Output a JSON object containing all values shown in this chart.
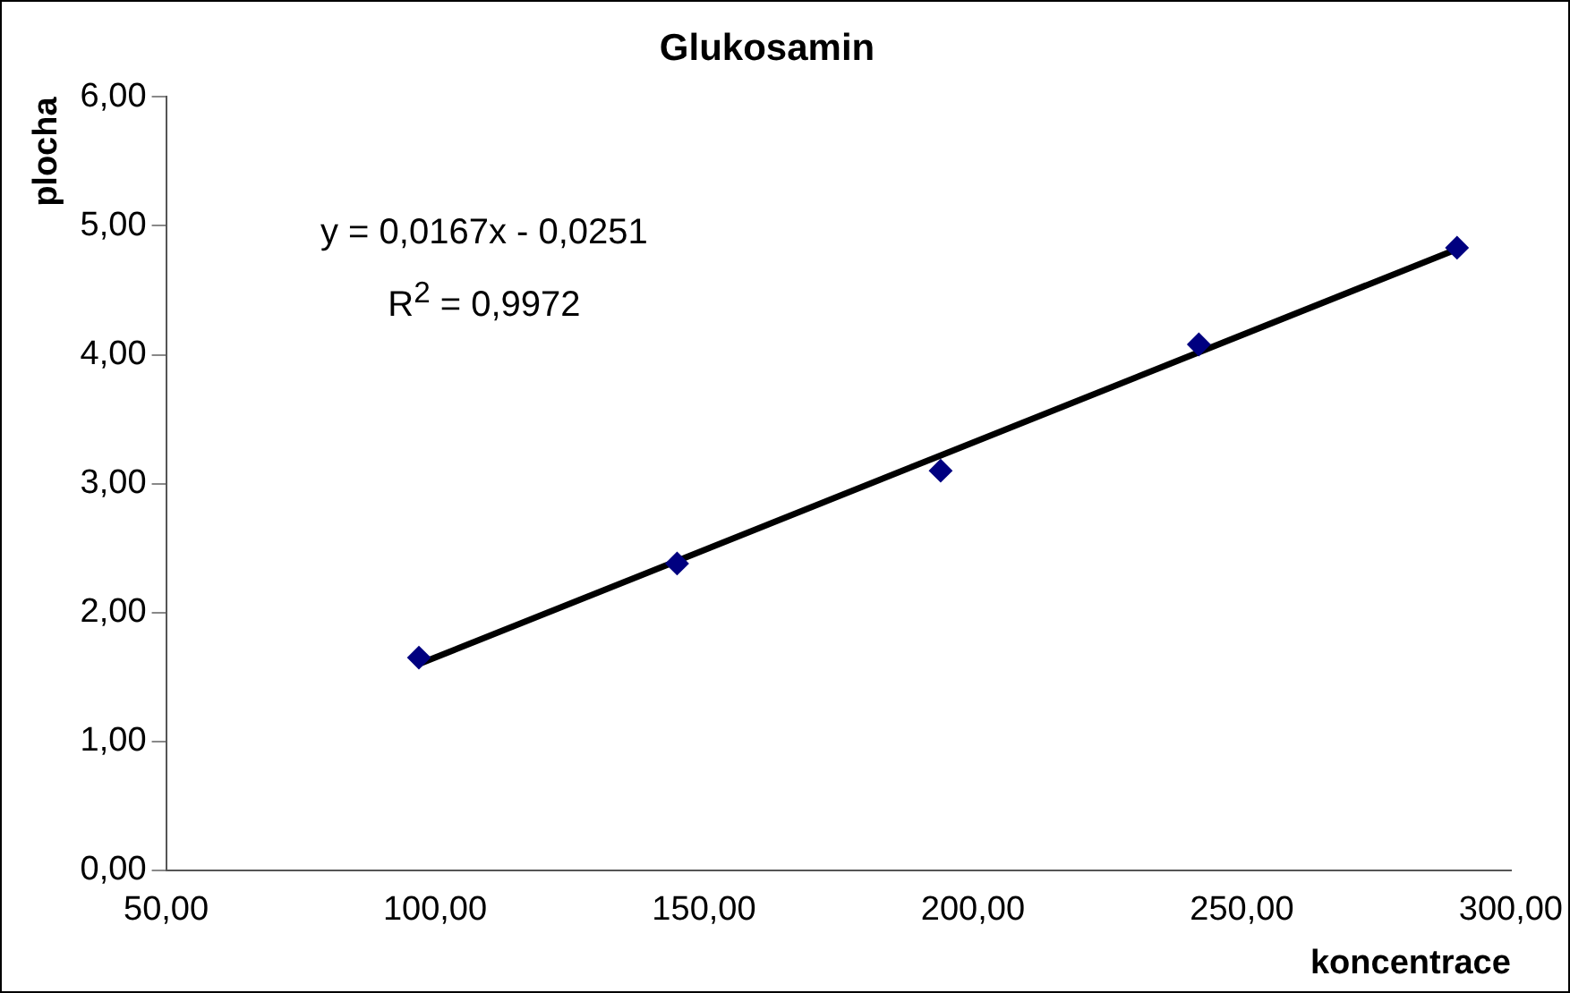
{
  "chart_data": {
    "type": "scatter",
    "title": "Glukosamin",
    "xlabel": "koncentrace",
    "ylabel": "plocha",
    "annotations": [
      "y = 0,0167x - 0,0251",
      "R$^{2}$ = 0,9972"
    ],
    "x": [
      97,
      145,
      194,
      242,
      290
    ],
    "series": [
      {
        "color": "#000080",
        "marker": "diamond",
        "values": [
          1.65,
          2.38,
          3.1,
          4.08,
          4.83
        ]
      },
      {
        "type": "line",
        "color": "#000000",
        "marker": "none",
        "x": [
          97,
          290
        ],
        "values": [
          1.6,
          4.82
        ]
      }
    ],
    "xlim": [
      50,
      300
    ],
    "xticks": [
      {
        "value": 50,
        "label": "50,00"
      },
      {
        "value": 100,
        "label": "100,00"
      },
      {
        "value": 150,
        "label": "150,00"
      },
      {
        "value": 200,
        "label": "200,00"
      },
      {
        "value": 250,
        "label": "250,00"
      },
      {
        "value": 300,
        "label": "300,00"
      }
    ],
    "ylim": [
      0,
      6
    ],
    "yticks": [
      {
        "value": 0,
        "label": "0,00"
      },
      {
        "value": 1,
        "label": "1,00"
      },
      {
        "value": 2,
        "label": "2,00"
      },
      {
        "value": 3,
        "label": "3,00"
      },
      {
        "value": 4,
        "label": "4,00"
      },
      {
        "value": 5,
        "label": "5,00"
      },
      {
        "value": 6,
        "label": "6,00"
      }
    ],
    "grid": false,
    "legend": false
  }
}
